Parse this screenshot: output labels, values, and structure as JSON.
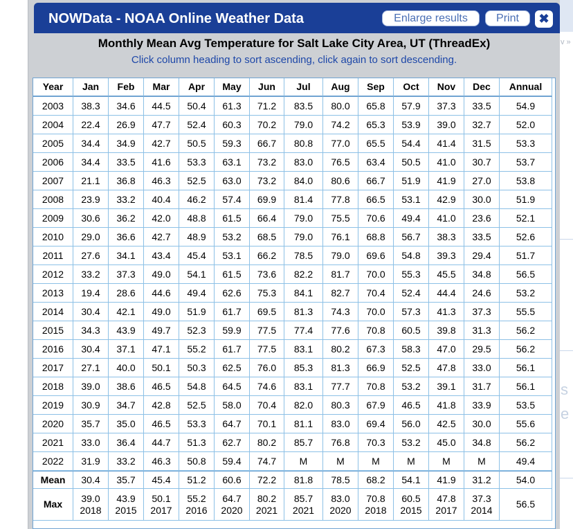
{
  "dialog": {
    "title": "NOWData - NOAA Online Weather Data",
    "enlarge_label": "Enlarge results",
    "print_label": "Print",
    "close_icon": "close-icon",
    "heading": "Monthly Mean Avg Temperature for Salt Lake City Area, UT (ThreadEx)",
    "subheading": "Click column heading to sort ascending, click again to sort descending."
  },
  "background": {
    "fragment": "v »",
    "letter_s": "s",
    "letter_e": "e"
  },
  "table": {
    "columns": [
      "Year",
      "Jan",
      "Feb",
      "Mar",
      "Apr",
      "May",
      "Jun",
      "Jul",
      "Aug",
      "Sep",
      "Oct",
      "Nov",
      "Dec",
      "Annual"
    ],
    "rows": [
      [
        "2003",
        "38.3",
        "34.6",
        "44.5",
        "50.4",
        "61.3",
        "71.2",
        "83.5",
        "80.0",
        "65.8",
        "57.9",
        "37.3",
        "33.5",
        "54.9"
      ],
      [
        "2004",
        "22.4",
        "26.9",
        "47.7",
        "52.4",
        "60.3",
        "70.2",
        "79.0",
        "74.2",
        "65.3",
        "53.9",
        "39.0",
        "32.7",
        "52.0"
      ],
      [
        "2005",
        "34.4",
        "34.9",
        "42.7",
        "50.5",
        "59.3",
        "66.7",
        "80.8",
        "77.0",
        "65.5",
        "54.4",
        "41.4",
        "31.5",
        "53.3"
      ],
      [
        "2006",
        "34.4",
        "33.5",
        "41.6",
        "53.3",
        "63.1",
        "73.2",
        "83.0",
        "76.5",
        "63.4",
        "50.5",
        "41.0",
        "30.7",
        "53.7"
      ],
      [
        "2007",
        "21.1",
        "36.8",
        "46.3",
        "52.5",
        "63.0",
        "73.2",
        "84.0",
        "80.6",
        "66.7",
        "51.9",
        "41.9",
        "27.0",
        "53.8"
      ],
      [
        "2008",
        "23.9",
        "33.2",
        "40.4",
        "46.2",
        "57.4",
        "69.9",
        "81.4",
        "77.8",
        "66.5",
        "53.1",
        "42.9",
        "30.0",
        "51.9"
      ],
      [
        "2009",
        "30.6",
        "36.2",
        "42.0",
        "48.8",
        "61.5",
        "66.4",
        "79.0",
        "75.5",
        "70.6",
        "49.4",
        "41.0",
        "23.6",
        "52.1"
      ],
      [
        "2010",
        "29.0",
        "36.6",
        "42.7",
        "48.9",
        "53.2",
        "68.5",
        "79.0",
        "76.1",
        "68.8",
        "56.7",
        "38.3",
        "33.5",
        "52.6"
      ],
      [
        "2011",
        "27.6",
        "34.1",
        "43.4",
        "45.4",
        "53.1",
        "66.2",
        "78.5",
        "79.0",
        "69.6",
        "54.8",
        "39.3",
        "29.4",
        "51.7"
      ],
      [
        "2012",
        "33.2",
        "37.3",
        "49.0",
        "54.1",
        "61.5",
        "73.6",
        "82.2",
        "81.7",
        "70.0",
        "55.3",
        "45.5",
        "34.8",
        "56.5"
      ],
      [
        "2013",
        "19.4",
        "28.6",
        "44.6",
        "49.4",
        "62.6",
        "75.3",
        "84.1",
        "82.7",
        "70.4",
        "52.4",
        "44.4",
        "24.6",
        "53.2"
      ],
      [
        "2014",
        "30.4",
        "42.1",
        "49.0",
        "51.9",
        "61.7",
        "69.5",
        "81.3",
        "74.3",
        "70.0",
        "57.3",
        "41.3",
        "37.3",
        "55.5"
      ],
      [
        "2015",
        "34.3",
        "43.9",
        "49.7",
        "52.3",
        "59.9",
        "77.5",
        "77.4",
        "77.6",
        "70.8",
        "60.5",
        "39.8",
        "31.3",
        "56.2"
      ],
      [
        "2016",
        "30.4",
        "37.1",
        "47.1",
        "55.2",
        "61.7",
        "77.5",
        "83.1",
        "80.2",
        "67.3",
        "58.3",
        "47.0",
        "29.5",
        "56.2"
      ],
      [
        "2017",
        "27.1",
        "40.0",
        "50.1",
        "50.3",
        "62.5",
        "76.0",
        "85.3",
        "81.3",
        "66.9",
        "52.5",
        "47.8",
        "33.0",
        "56.1"
      ],
      [
        "2018",
        "39.0",
        "38.6",
        "46.5",
        "54.8",
        "64.5",
        "74.6",
        "83.1",
        "77.7",
        "70.8",
        "53.2",
        "39.1",
        "31.7",
        "56.1"
      ],
      [
        "2019",
        "30.9",
        "34.7",
        "42.8",
        "52.5",
        "58.0",
        "70.4",
        "82.0",
        "80.3",
        "67.9",
        "46.5",
        "41.8",
        "33.9",
        "53.5"
      ],
      [
        "2020",
        "35.7",
        "35.0",
        "46.5",
        "53.3",
        "64.7",
        "70.1",
        "81.1",
        "83.0",
        "69.4",
        "56.0",
        "42.5",
        "30.0",
        "55.6"
      ],
      [
        "2021",
        "33.0",
        "36.4",
        "44.7",
        "51.3",
        "62.7",
        "80.2",
        "85.7",
        "76.8",
        "70.3",
        "53.2",
        "45.0",
        "34.8",
        "56.2"
      ],
      [
        "2022",
        "31.9",
        "33.2",
        "46.3",
        "50.8",
        "59.4",
        "74.7",
        "M",
        "M",
        "M",
        "M",
        "M",
        "M",
        "49.4"
      ]
    ],
    "mean_row": [
      "Mean",
      "30.4",
      "35.7",
      "45.4",
      "51.2",
      "60.6",
      "72.2",
      "81.8",
      "78.5",
      "68.2",
      "54.1",
      "41.9",
      "31.2",
      "54.0"
    ],
    "max_row": {
      "label": "Max",
      "values": [
        [
          "39.0",
          "2018"
        ],
        [
          "43.9",
          "2015"
        ],
        [
          "50.1",
          "2017"
        ],
        [
          "55.2",
          "2016"
        ],
        [
          "64.7",
          "2020"
        ],
        [
          "80.2",
          "2021"
        ],
        [
          "85.7",
          "2021"
        ],
        [
          "83.0",
          "2020"
        ],
        [
          "70.8",
          "2018"
        ],
        [
          "60.5",
          "2015"
        ],
        [
          "47.8",
          "2017"
        ],
        [
          "37.3",
          "2014"
        ]
      ],
      "annual": "56.5"
    }
  }
}
